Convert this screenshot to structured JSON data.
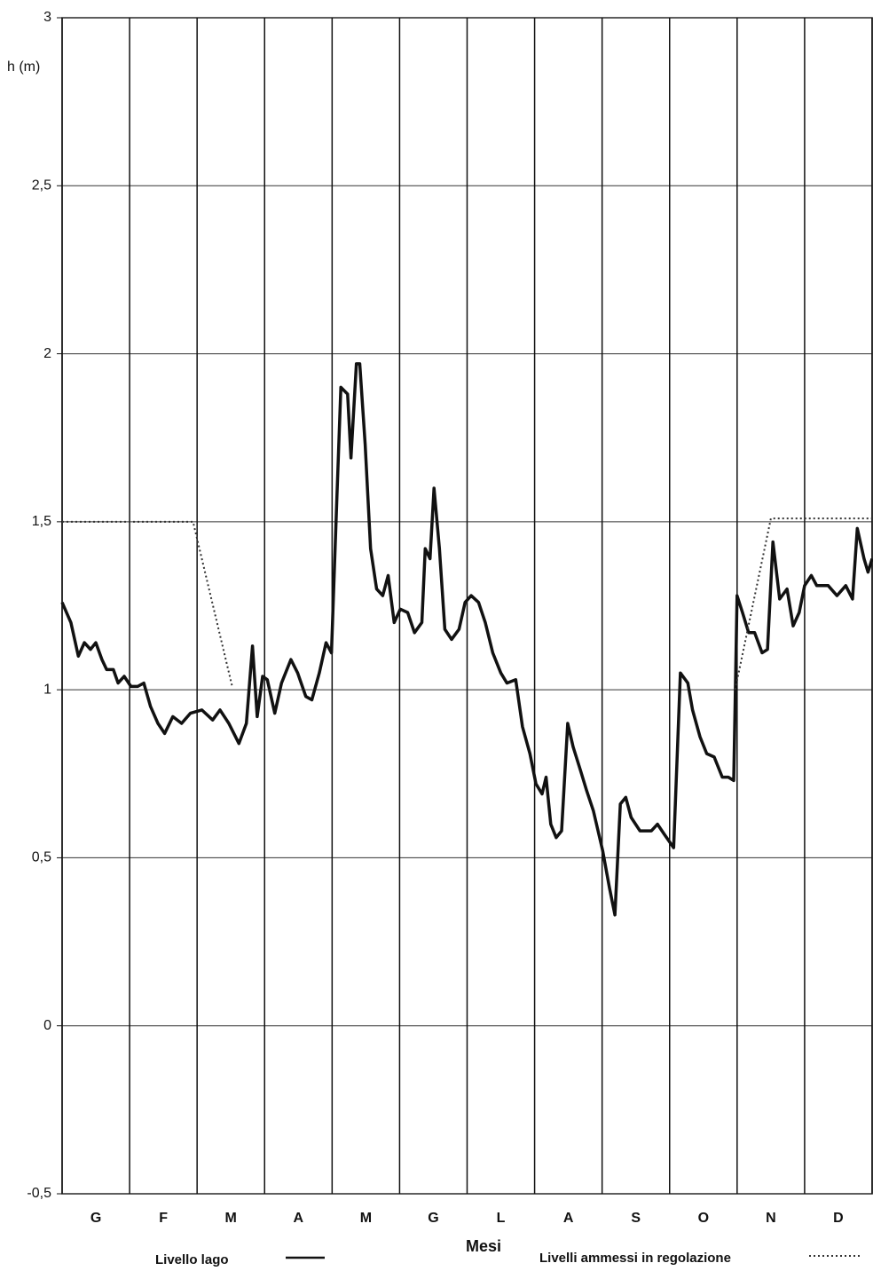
{
  "chart_data": {
    "type": "line",
    "y_label": "h (m)",
    "x_label": "Mesi",
    "months": [
      "G",
      "F",
      "M",
      "A",
      "M",
      "G",
      "L",
      "A",
      "S",
      "O",
      "N",
      "D"
    ],
    "xlim": [
      0,
      12
    ],
    "xgrid": [
      0,
      1,
      2,
      3,
      4,
      5,
      6,
      7,
      8,
      9,
      10,
      11,
      12
    ],
    "ylim": [
      -0.5,
      3
    ],
    "yticks": [
      {
        "value": -0.5,
        "label": "-0,5"
      },
      0,
      {
        "value": 0.5,
        "label": "0,5"
      },
      1,
      {
        "value": 1.5,
        "label": "1,5"
      },
      2,
      {
        "value": 2.5,
        "label": "2,5"
      },
      3
    ],
    "grid": true,
    "series": [
      {
        "name": "Livello lago",
        "color": "#111111",
        "style": "solid",
        "x": [
          0,
          0.13,
          0.24,
          0.33,
          0.42,
          0.5,
          0.59,
          0.66,
          0.76,
          0.83,
          0.92,
          1.02,
          1.12,
          1.21,
          1.31,
          1.42,
          1.52,
          1.64,
          1.77,
          1.9,
          2.07,
          2.23,
          2.34,
          2.47,
          2.62,
          2.73,
          2.82,
          2.89,
          2.97,
          3.04,
          3.15,
          3.25,
          3.39,
          3.49,
          3.61,
          3.7,
          3.81,
          3.91,
          3.99,
          4.07,
          4.13,
          4.23,
          4.28,
          4.36,
          4.41,
          4.49,
          4.57,
          4.66,
          4.75,
          4.83,
          4.92,
          5.01,
          5.12,
          5.22,
          5.33,
          5.38,
          5.45,
          5.51,
          5.59,
          5.67,
          5.77,
          5.88,
          5.97,
          6.06,
          6.17,
          6.27,
          6.38,
          6.5,
          6.59,
          6.72,
          6.82,
          6.93,
          7.02,
          7.11,
          7.17,
          7.24,
          7.32,
          7.4,
          7.49,
          7.57,
          7.68,
          7.77,
          7.87,
          8.01,
          8.11,
          8.19,
          8.27,
          8.35,
          8.43,
          8.56,
          8.73,
          8.82,
          8.92,
          9.06,
          9.16,
          9.27,
          9.34,
          9.45,
          9.55,
          9.66,
          9.78,
          9.87,
          9.95,
          10,
          10.08,
          10.17,
          10.26,
          10.37,
          10.45,
          10.53,
          10.63,
          10.74,
          10.83,
          10.92,
          11,
          11.1,
          11.18,
          11.35,
          11.48,
          11.61,
          11.71,
          11.78,
          11.88,
          11.94,
          12
        ],
        "values": [
          1.26,
          1.2,
          1.1,
          1.14,
          1.12,
          1.14,
          1.09,
          1.06,
          1.06,
          1.02,
          1.04,
          1.01,
          1.01,
          1.02,
          0.95,
          0.9,
          0.87,
          0.92,
          0.9,
          0.93,
          0.94,
          0.91,
          0.94,
          0.9,
          0.84,
          0.9,
          1.13,
          0.92,
          1.04,
          1.03,
          0.93,
          1.02,
          1.09,
          1.05,
          0.98,
          0.97,
          1.05,
          1.14,
          1.11,
          1.57,
          1.9,
          1.88,
          1.69,
          1.97,
          1.97,
          1.73,
          1.42,
          1.3,
          1.28,
          1.34,
          1.2,
          1.24,
          1.23,
          1.17,
          1.2,
          1.42,
          1.39,
          1.6,
          1.42,
          1.18,
          1.15,
          1.18,
          1.26,
          1.28,
          1.26,
          1.2,
          1.11,
          1.05,
          1.02,
          1.03,
          0.89,
          0.81,
          0.72,
          0.69,
          0.74,
          0.6,
          0.56,
          0.58,
          0.9,
          0.83,
          0.76,
          0.7,
          0.64,
          0.52,
          0.41,
          0.33,
          0.66,
          0.68,
          0.62,
          0.58,
          0.58,
          0.6,
          0.57,
          0.53,
          1.05,
          1.02,
          0.94,
          0.86,
          0.81,
          0.8,
          0.74,
          0.74,
          0.73,
          1.28,
          1.23,
          1.17,
          1.17,
          1.11,
          1.12,
          1.44,
          1.27,
          1.3,
          1.19,
          1.23,
          1.31,
          1.34,
          1.31,
          1.31,
          1.28,
          1.31,
          1.27,
          1.48,
          1.39,
          1.35,
          1.39
        ]
      },
      {
        "name": "Livelli ammessi in regolazione",
        "color": "#333333",
        "style": "dotted",
        "x": [
          0,
          1.94,
          2.52,
          3.94,
          9.97,
          10.5,
          12
        ],
        "values": [
          1.5,
          1.5,
          1.01,
          null,
          1.0,
          1.51,
          1.51
        ]
      }
    ]
  }
}
